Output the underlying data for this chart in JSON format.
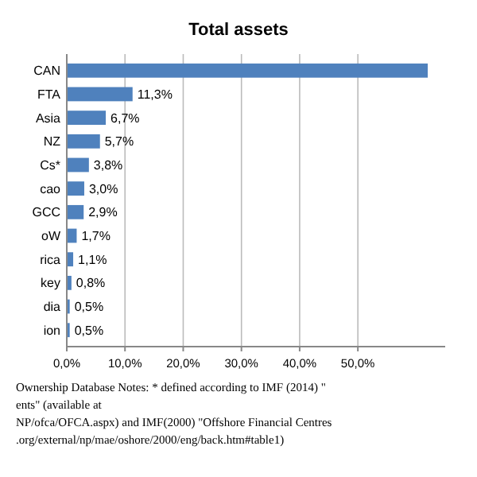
{
  "chart_data": {
    "type": "bar",
    "orientation": "horizontal",
    "title": "Total assets",
    "categories": [
      "CAN",
      "FTA",
      "Asia",
      "NZ",
      "Cs*",
      "cao",
      "GCC",
      "oW",
      "rica",
      "key",
      "dia",
      "ion"
    ],
    "values": [
      62.0,
      11.3,
      6.7,
      5.7,
      3.8,
      3.0,
      2.9,
      1.7,
      1.1,
      0.8,
      0.5,
      0.5
    ],
    "value_labels": [
      null,
      "11,3%",
      "6,7%",
      "5,7%",
      "3,8%",
      "3,0%",
      "2,9%",
      "1,7%",
      "1,1%",
      "0,8%",
      "0,5%",
      "0,5%"
    ],
    "color": "#4f81bd",
    "xlim": [
      0,
      65
    ],
    "xticks": [
      {
        "value": 0,
        "label": "0,0%"
      },
      {
        "value": 10,
        "label": "10,0%"
      },
      {
        "value": 20,
        "label": "20,0%"
      },
      {
        "value": 30,
        "label": "30,0%"
      },
      {
        "value": 40,
        "label": "40,0%"
      },
      {
        "value": 50,
        "label": "50,0%"
      }
    ],
    "grid": "x",
    "annotations": [
      "Ownership Database Notes: * defined according to IMF (2014) \"",
      "ents\" (available at",
      "NP/ofca/OFCA.aspx) and IMF(2000) \"Offshore Financial Centres",
      ".org/external/np/mae/oshore/2000/eng/back.htm#table1)"
    ]
  }
}
